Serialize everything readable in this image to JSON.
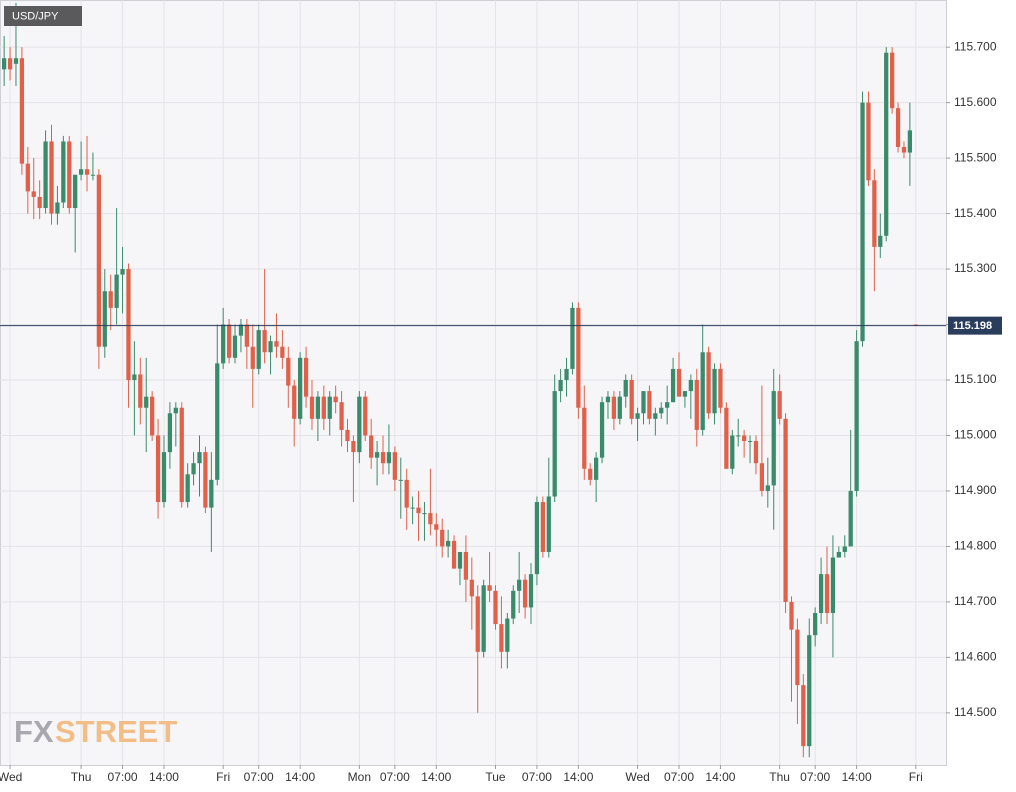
{
  "chart_data": {
    "type": "candlestick",
    "title": "USD/JPY",
    "watermark": [
      "FX",
      "STREET"
    ],
    "current_price": 115.198,
    "up_color": "#3a8a6c",
    "down_color": "#e0604a",
    "grid": true,
    "xlim": [
      -0.7,
      159.1
    ],
    "ylim": [
      114.406,
      115.785
    ],
    "yticks": [
      {
        "value": 114.5,
        "label": "114.500"
      },
      {
        "value": 114.6,
        "label": "114.600"
      },
      {
        "value": 114.7,
        "label": "114.700"
      },
      {
        "value": 114.8,
        "label": "114.800"
      },
      {
        "value": 114.9,
        "label": "114.900"
      },
      {
        "value": 115.0,
        "label": "115.000"
      },
      {
        "value": 115.1,
        "label": "115.100"
      },
      {
        "value": 115.2,
        "label": "115.200"
      },
      {
        "value": 115.3,
        "label": "115.300"
      },
      {
        "value": 115.4,
        "label": "115.400"
      },
      {
        "value": 115.5,
        "label": "115.500"
      },
      {
        "value": 115.6,
        "label": "115.600"
      },
      {
        "value": 115.7,
        "label": "115.700"
      }
    ],
    "xticks": [
      {
        "value": 1,
        "label": "Wed"
      },
      {
        "value": 13,
        "label": "Thu"
      },
      {
        "value": 20,
        "label": "07:00"
      },
      {
        "value": 27,
        "label": "14:00"
      },
      {
        "value": 37,
        "label": "Fri"
      },
      {
        "value": 43,
        "label": "07:00"
      },
      {
        "value": 50,
        "label": "14:00"
      },
      {
        "value": 60,
        "label": "Mon"
      },
      {
        "value": 66,
        "label": "07:00"
      },
      {
        "value": 73,
        "label": "14:00"
      },
      {
        "value": 83,
        "label": "Tue"
      },
      {
        "value": 90,
        "label": "07:00"
      },
      {
        "value": 97,
        "label": "14:00"
      },
      {
        "value": 107,
        "label": "Wed"
      },
      {
        "value": 114,
        "label": "07:00"
      },
      {
        "value": 121,
        "label": "14:00"
      },
      {
        "value": 131,
        "label": "Thu"
      },
      {
        "value": 137,
        "label": "07:00"
      },
      {
        "value": 144,
        "label": "14:00"
      },
      {
        "value": 154,
        "label": "Fri"
      }
    ],
    "open": [
      115.66,
      115.68,
      115.67,
      115.68,
      115.49,
      115.44,
      115.43,
      115.41,
      115.53,
      115.4,
      115.42,
      115.53,
      115.41,
      115.47,
      115.48,
      115.47,
      115.47,
      115.16,
      115.26,
      115.23,
      115.29,
      115.3,
      115.1,
      115.11,
      115.05,
      115.07,
      115.0,
      114.88,
      114.97,
      115.04,
      115.05,
      114.88,
      114.93,
      114.95,
      114.97,
      114.87,
      114.92,
      115.13,
      115.2,
      115.14,
      115.18,
      115.2,
      115.16,
      115.12,
      115.19,
      115.15,
      115.17,
      115.16,
      115.14,
      115.09,
      115.03,
      115.14,
      115.07,
      115.03,
      115.07,
      115.03,
      115.07,
      115.06,
      115.01,
      114.99,
      114.97,
      115.07,
      115.0,
      114.96,
      114.97,
      114.95,
      114.97,
      114.92,
      114.92,
      114.87,
      114.87,
      114.86,
      114.86,
      114.84,
      114.83,
      114.8,
      114.81,
      114.76,
      114.79,
      114.74,
      114.71,
      114.61,
      114.73,
      114.72,
      114.66,
      114.61,
      114.67,
      114.72,
      114.74,
      114.69,
      114.75,
      114.88,
      114.79,
      114.89,
      115.08,
      115.1,
      115.12,
      115.23,
      115.05,
      114.94,
      114.92,
      114.96,
      115.06,
      115.07,
      115.03,
      115.07,
      115.1,
      115.03,
      115.04,
      115.08,
      115.03,
      115.04,
      115.05,
      115.06,
      115.12,
      115.07,
      115.08,
      115.1,
      115.01,
      115.15,
      115.04,
      115.12,
      115.05,
      114.94,
      115.0,
      115.0,
      114.99,
      114.99,
      114.95,
      114.9,
      114.91,
      115.08,
      115.03,
      114.7,
      114.65,
      114.55,
      114.44,
      114.64,
      114.68,
      114.75,
      114.68,
      114.78,
      114.79,
      114.8,
      114.9,
      115.17,
      115.6,
      115.46,
      115.34,
      115.36,
      115.69,
      115.59,
      115.52,
      115.51,
      115.2
    ],
    "high": [
      115.72,
      115.7,
      115.78,
      115.7,
      115.52,
      115.5,
      115.46,
      115.55,
      115.56,
      115.45,
      115.54,
      115.54,
      115.47,
      115.53,
      115.54,
      115.51,
      115.48,
      115.3,
      115.29,
      115.41,
      115.34,
      115.31,
      115.17,
      115.14,
      115.14,
      115.08,
      115.03,
      115.0,
      115.06,
      115.06,
      115.06,
      114.95,
      114.97,
      115.0,
      114.98,
      114.97,
      115.2,
      115.23,
      115.21,
      115.2,
      115.21,
      115.21,
      115.2,
      115.2,
      115.3,
      115.18,
      115.22,
      115.19,
      115.16,
      115.1,
      115.15,
      115.16,
      115.1,
      115.08,
      115.09,
      115.08,
      115.09,
      115.08,
      115.03,
      115.0,
      115.08,
      115.08,
      115.03,
      114.99,
      115.0,
      115.02,
      114.98,
      114.96,
      114.94,
      114.89,
      114.9,
      114.88,
      114.94,
      114.86,
      114.85,
      114.83,
      114.82,
      114.79,
      114.82,
      114.78,
      114.73,
      114.74,
      114.79,
      114.73,
      114.71,
      114.68,
      114.73,
      114.79,
      114.75,
      114.77,
      114.89,
      114.89,
      114.96,
      115.11,
      115.12,
      115.14,
      115.24,
      115.24,
      115.09,
      114.95,
      114.97,
      115.07,
      115.08,
      115.08,
      115.08,
      115.11,
      115.11,
      115.05,
      115.08,
      115.09,
      115.05,
      115.06,
      115.09,
      115.14,
      115.15,
      115.08,
      115.11,
      115.12,
      115.2,
      115.16,
      115.13,
      115.13,
      115.06,
      115.01,
      115.03,
      115.01,
      115.0,
      115.0,
      115.09,
      114.96,
      115.12,
      115.11,
      115.04,
      114.71,
      114.67,
      114.57,
      114.67,
      114.69,
      114.78,
      114.8,
      114.82,
      114.8,
      114.82,
      115.01,
      115.19,
      115.62,
      115.62,
      115.48,
      115.4,
      115.7,
      115.7,
      115.6,
      115.53,
      115.6,
      115.2
    ],
    "low": [
      115.63,
      115.64,
      115.63,
      115.47,
      115.4,
      115.39,
      115.39,
      115.4,
      115.38,
      115.38,
      115.41,
      115.4,
      115.33,
      115.46,
      115.44,
      115.46,
      115.12,
      115.14,
      115.19,
      115.2,
      115.22,
      115.05,
      115.0,
      115.02,
      114.97,
      114.99,
      114.85,
      114.87,
      114.94,
      114.98,
      114.87,
      114.87,
      114.91,
      114.89,
      114.86,
      114.79,
      114.91,
      115.12,
      115.13,
      115.13,
      115.15,
      115.12,
      115.05,
      115.11,
      115.13,
      115.11,
      115.14,
      115.12,
      115.05,
      114.98,
      115.02,
      115.05,
      115.01,
      114.99,
      115.01,
      115.0,
      115.04,
      114.98,
      114.97,
      114.88,
      114.95,
      114.99,
      114.94,
      114.91,
      114.93,
      114.93,
      114.9,
      114.85,
      114.83,
      114.84,
      114.81,
      114.81,
      114.82,
      114.8,
      114.78,
      114.78,
      114.76,
      114.73,
      114.7,
      114.65,
      114.5,
      114.6,
      114.7,
      114.65,
      114.58,
      114.58,
      114.66,
      114.68,
      114.67,
      114.66,
      114.73,
      114.78,
      114.78,
      114.88,
      115.06,
      115.07,
      115.11,
      115.03,
      114.92,
      114.91,
      114.88,
      114.95,
      115.03,
      115.01,
      115.02,
      115.05,
      115.02,
      114.99,
      115.02,
      115.02,
      115.0,
      115.03,
      115.02,
      115.06,
      115.07,
      115.05,
      115.03,
      114.98,
      115.0,
      115.03,
      115.02,
      115.04,
      114.94,
      114.93,
      114.98,
      114.96,
      114.95,
      114.93,
      114.89,
      114.87,
      114.83,
      115.02,
      114.68,
      114.52,
      114.48,
      114.42,
      114.42,
      114.62,
      114.66,
      114.66,
      114.6,
      114.78,
      114.78,
      114.8,
      114.89,
      115.16,
      115.45,
      115.26,
      115.32,
      115.35,
      115.58,
      115.51,
      115.5,
      115.45,
      115.198
    ],
    "close": [
      115.68,
      115.66,
      115.68,
      115.49,
      115.44,
      115.43,
      115.41,
      115.53,
      115.4,
      115.42,
      115.53,
      115.41,
      115.47,
      115.48,
      115.47,
      115.47,
      115.16,
      115.26,
      115.23,
      115.29,
      115.3,
      115.1,
      115.11,
      115.05,
      115.07,
      115.0,
      114.88,
      114.97,
      115.04,
      115.05,
      114.88,
      114.93,
      114.95,
      114.97,
      114.87,
      114.92,
      115.13,
      115.2,
      115.14,
      115.18,
      115.2,
      115.16,
      115.12,
      115.19,
      115.15,
      115.17,
      115.16,
      115.14,
      115.09,
      115.03,
      115.14,
      115.07,
      115.03,
      115.07,
      115.03,
      115.07,
      115.06,
      115.01,
      114.99,
      114.97,
      115.07,
      115.0,
      114.96,
      114.97,
      114.95,
      114.97,
      114.92,
      114.92,
      114.87,
      114.87,
      114.86,
      114.86,
      114.84,
      114.83,
      114.8,
      114.81,
      114.76,
      114.79,
      114.74,
      114.71,
      114.61,
      114.73,
      114.72,
      114.66,
      114.61,
      114.67,
      114.72,
      114.74,
      114.69,
      114.75,
      114.88,
      114.79,
      114.89,
      115.08,
      115.1,
      115.12,
      115.23,
      115.05,
      114.94,
      114.92,
      114.96,
      115.06,
      115.07,
      115.03,
      115.07,
      115.1,
      115.03,
      115.04,
      115.08,
      115.03,
      115.04,
      115.05,
      115.06,
      115.12,
      115.07,
      115.08,
      115.1,
      115.01,
      115.15,
      115.04,
      115.12,
      115.05,
      114.94,
      115.0,
      115.0,
      114.99,
      114.99,
      114.95,
      114.9,
      114.91,
      115.08,
      115.03,
      114.7,
      114.65,
      114.55,
      114.44,
      114.64,
      114.68,
      114.75,
      114.68,
      114.78,
      114.79,
      114.8,
      114.9,
      115.17,
      115.6,
      115.46,
      115.34,
      115.36,
      115.69,
      115.59,
      115.52,
      115.51,
      115.55,
      115.198
    ]
  }
}
